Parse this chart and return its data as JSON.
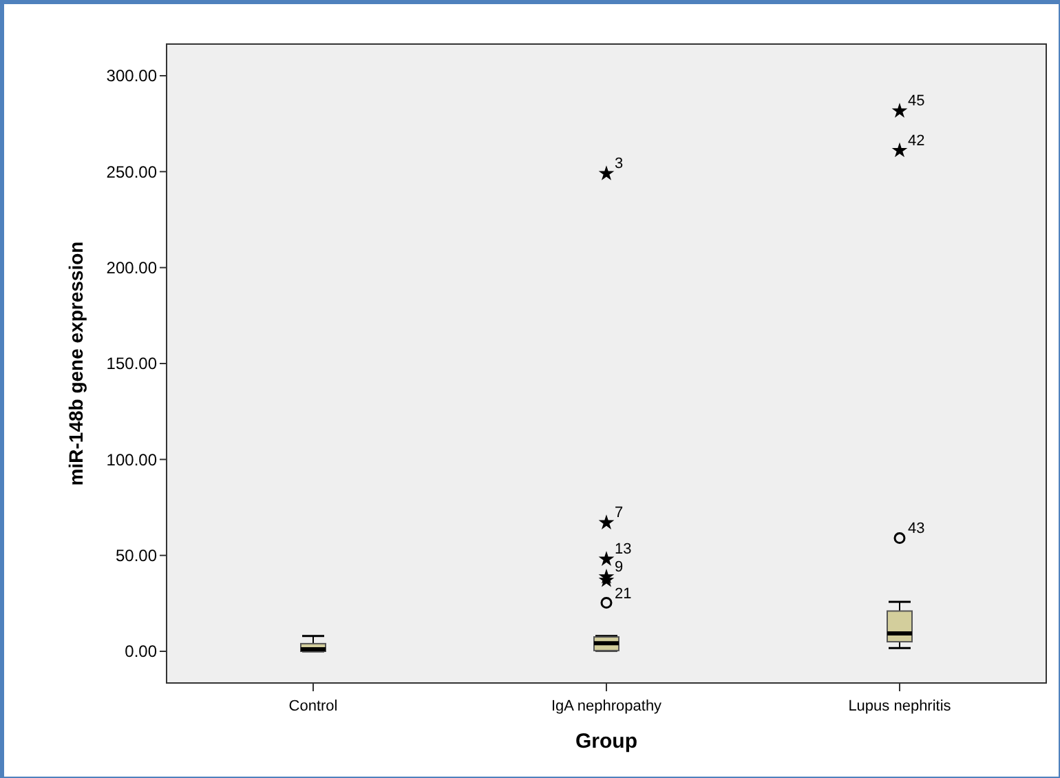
{
  "chart_data": {
    "type": "box",
    "xlabel": "Group",
    "ylabel": "miR-148b gene expression",
    "categories": [
      "Control",
      "IgA nephropathy",
      "Lupus nephritis"
    ],
    "ylim": [
      -16.5,
      316.5
    ],
    "yticks": [
      {
        "value": 0,
        "label": "0.00"
      },
      {
        "value": 50,
        "label": "50.00"
      },
      {
        "value": 100,
        "label": "100.00"
      },
      {
        "value": 150,
        "label": "150.00"
      },
      {
        "value": 200,
        "label": "200.00"
      },
      {
        "value": 250,
        "label": "250.00"
      },
      {
        "value": 300,
        "label": "300.00"
      }
    ],
    "grid": false,
    "series": [
      {
        "color": "#d3ce9c",
        "boxes": [
          {
            "low": 0,
            "q1": 0,
            "median": 1.1,
            "q3": 4,
            "high": 8
          },
          {
            "low": 0.3,
            "q1": 0.4,
            "median": 4.2,
            "q3": 7.5,
            "high": 8
          },
          {
            "low": 1.7,
            "q1": 5,
            "median": 9.3,
            "q3": 21,
            "high": 25.8
          }
        ]
      },
      {
        "type": "scatter",
        "marker": "circle",
        "color": "#000000",
        "x": [
          "IgA nephropathy",
          "Lupus nephritis"
        ],
        "values": [
          25.3,
          59
        ]
      },
      {
        "type": "scatter",
        "marker": "star",
        "color": "#000000",
        "x": [
          "IgA nephropathy",
          "IgA nephropathy",
          "IgA nephropathy",
          "IgA nephropathy",
          "IgA nephropathy",
          "Lupus nephritis",
          "Lupus nephritis"
        ],
        "values": [
          249,
          67,
          48,
          38.8,
          37,
          281.6,
          261
        ]
      }
    ],
    "annotations": [
      {
        "text": "3",
        "x": "IgA nephropathy",
        "y": 249
      },
      {
        "text": "7",
        "x": "IgA nephropathy",
        "y": 67
      },
      {
        "text": "13",
        "x": "IgA nephropathy",
        "y": 48
      },
      {
        "text": "9",
        "x": "IgA nephropathy",
        "y": 38.8
      },
      {
        "text": "21",
        "x": "IgA nephropathy",
        "y": 37
      },
      {
        "text": "45",
        "x": "Lupus nephritis",
        "y": 281.6
      },
      {
        "text": "42",
        "x": "Lupus nephritis",
        "y": 261
      },
      {
        "text": "43",
        "x": "Lupus nephritis",
        "y": 59
      }
    ]
  }
}
